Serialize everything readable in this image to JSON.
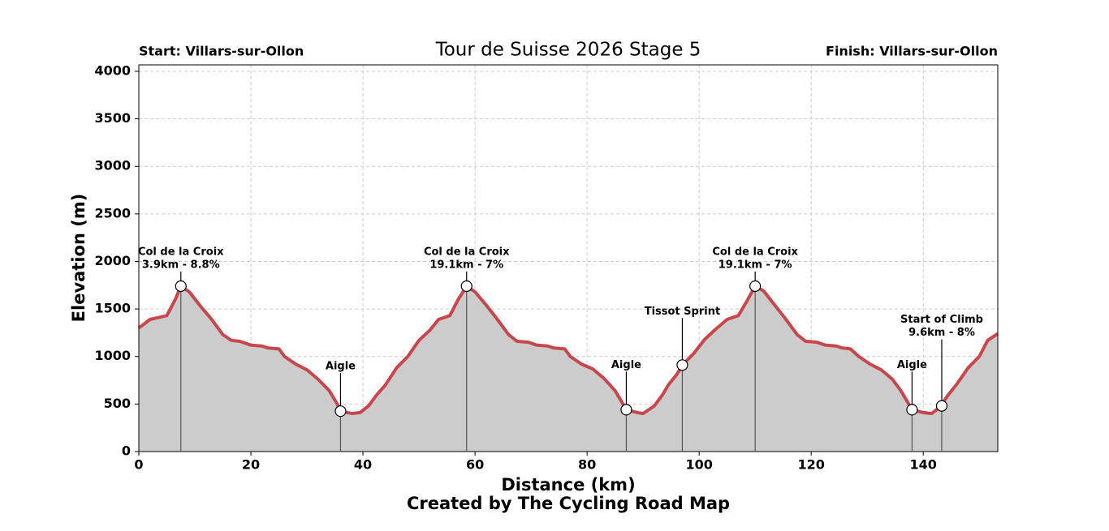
{
  "chart_data": {
    "type": "area",
    "title": "Tour de Suisse 2026 Stage 5",
    "start_label": "Start: Villars-sur-Ollon",
    "finish_label": "Finish: Villars-sur-Ollon",
    "x_label": "Distance (km)",
    "y_label": "Elevation (m)",
    "footer": "Created by The Cycling Road Map",
    "line_color": "#c8474d",
    "fill_color": "#cccccc",
    "grid": true,
    "xlim": [
      0,
      153.3
    ],
    "ylim": [
      0,
      4068
    ],
    "xticks": [
      0,
      20,
      40,
      60,
      80,
      100,
      120,
      140
    ],
    "yticks": [
      0,
      500,
      1000,
      1500,
      2000,
      2500,
      3000,
      3500,
      4000
    ],
    "x": [
      0,
      2,
      3.5,
      5,
      6.5,
      7.5,
      9,
      11,
      13,
      15,
      16.5,
      18,
      20,
      22,
      23,
      25,
      26,
      28,
      30,
      32,
      34,
      35.5,
      36,
      38,
      39.5,
      41,
      42.5,
      44,
      46,
      48,
      50,
      52,
      53.5,
      55.5,
      57,
      58.5,
      60,
      62,
      64,
      66,
      67.5,
      69.5,
      71,
      73,
      74,
      76,
      77,
      79,
      81,
      83,
      85,
      86.5,
      87,
      89,
      90,
      92,
      93.5,
      94.5,
      96,
      97,
      99,
      101,
      103,
      105,
      107,
      108.5,
      110,
      111.5,
      113.5,
      115.5,
      117.5,
      119,
      121,
      122.5,
      124.5,
      125.5,
      127,
      128.5,
      130.5,
      132.5,
      134.5,
      136,
      137.5,
      138,
      140,
      141.5,
      143,
      144.5,
      146,
      148,
      150,
      151.5,
      153.3
    ],
    "values": [
      1300,
      1390,
      1410,
      1430,
      1600,
      1740,
      1680,
      1530,
      1390,
      1230,
      1170,
      1160,
      1120,
      1110,
      1090,
      1080,
      1000,
      920,
      860,
      760,
      640,
      490,
      425,
      400,
      410,
      480,
      600,
      700,
      880,
      1000,
      1170,
      1280,
      1390,
      1430,
      1600,
      1740,
      1680,
      1540,
      1390,
      1230,
      1160,
      1150,
      1120,
      1110,
      1090,
      1080,
      1000,
      920,
      870,
      770,
      640,
      490,
      440,
      410,
      400,
      480,
      600,
      700,
      810,
      910,
      1030,
      1180,
      1290,
      1390,
      1430,
      1580,
      1740,
      1690,
      1540,
      1390,
      1230,
      1160,
      1150,
      1120,
      1110,
      1090,
      1080,
      1000,
      920,
      860,
      760,
      640,
      490,
      440,
      410,
      400,
      470,
      600,
      710,
      880,
      1000,
      1170,
      1240
    ],
    "annotations": [
      {
        "x": 7.5,
        "y": 1740,
        "lines": [
          "Col de la Croix",
          "3.9km - 8.8%"
        ]
      },
      {
        "x": 36,
        "y": 425,
        "lines": [
          "Aigle"
        ]
      },
      {
        "x": 58.5,
        "y": 1740,
        "lines": [
          "Col de la Croix",
          "19.1km - 7%"
        ]
      },
      {
        "x": 87,
        "y": 440,
        "lines": [
          "Aigle"
        ]
      },
      {
        "x": 97,
        "y": 910,
        "lines": [
          "Tissot Sprint"
        ]
      },
      {
        "x": 110,
        "y": 1740,
        "lines": [
          "Col de la Croix",
          "19.1km - 7%"
        ]
      },
      {
        "x": 138,
        "y": 440,
        "lines": [
          "Aigle"
        ]
      },
      {
        "x": 143.3,
        "y": 480,
        "lines": [
          "Start of Climb",
          "9.6km - 8%"
        ]
      }
    ]
  }
}
